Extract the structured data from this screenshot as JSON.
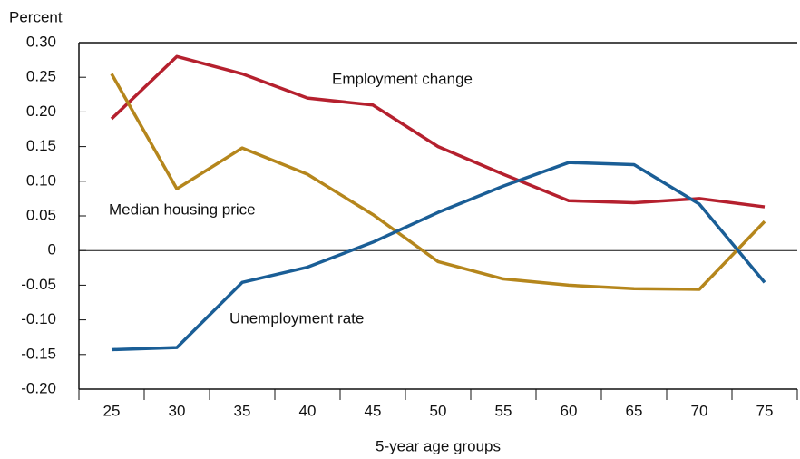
{
  "chart_data": {
    "type": "line",
    "y_label": "Percent",
    "x_label": "5-year age groups",
    "categories": [
      "25",
      "30",
      "35",
      "40",
      "45",
      "50",
      "55",
      "60",
      "65",
      "70",
      "75"
    ],
    "series": [
      {
        "name": "Employment change",
        "color": "#b5202e",
        "values": [
          0.19,
          0.28,
          0.255,
          0.22,
          0.21,
          0.15,
          0.11,
          0.072,
          0.069,
          0.075,
          0.063
        ]
      },
      {
        "name": "Median housing price",
        "color": "#b5861c",
        "values": [
          0.255,
          0.089,
          0.148,
          0.11,
          0.052,
          -0.016,
          -0.041,
          -0.05,
          -0.055,
          -0.056,
          0.042
        ]
      },
      {
        "name": "Unemployment rate",
        "color": "#1a5e96",
        "values": [
          -0.143,
          -0.14,
          -0.046,
          -0.024,
          0.012,
          0.055,
          0.093,
          0.127,
          0.124,
          0.067,
          -0.046
        ]
      }
    ],
    "ylim": [
      -0.2,
      0.3
    ],
    "yticks": [
      {
        "value": -0.2,
        "label": "-0.20"
      },
      -0.15,
      {
        "value": -0.1,
        "label": "-0.10"
      },
      -0.05,
      0,
      0.05,
      {
        "value": 0.1,
        "label": "0.10"
      },
      0.15,
      {
        "value": 0.2,
        "label": "0.20"
      },
      0.25,
      {
        "value": 0.3,
        "label": "0.30"
      }
    ]
  }
}
